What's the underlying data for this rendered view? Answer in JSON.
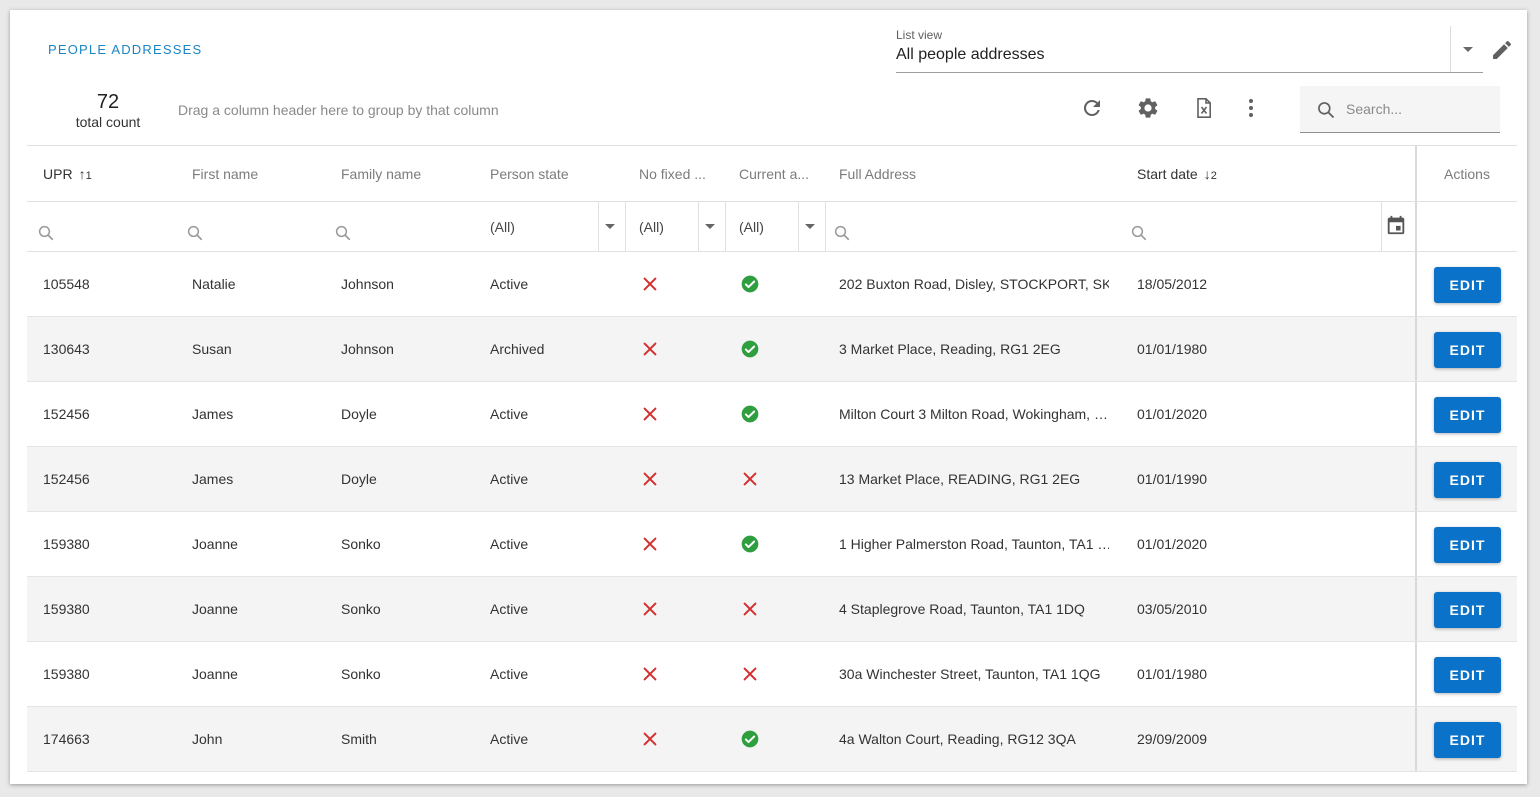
{
  "page": {
    "title": "PEOPLE ADDRESSES"
  },
  "listview": {
    "label": "List view",
    "value": "All people addresses"
  },
  "summary": {
    "count": "72",
    "count_label": "total count",
    "group_hint": "Drag a column header here to group by that column"
  },
  "search": {
    "placeholder": "Search..."
  },
  "columns": {
    "upr": "UPR",
    "upr_sort": "↑",
    "upr_sort_idx": "1",
    "first": "First name",
    "family": "Family name",
    "state": "Person state",
    "nofixed": "No fixed ...",
    "current": "Current a...",
    "address": "Full Address",
    "start": "Start date",
    "start_sort": "↓",
    "start_sort_idx": "2",
    "actions": "Actions"
  },
  "filters": {
    "state": "(All)",
    "nofixed": "(All)",
    "current": "(All)"
  },
  "edit_label": "EDIT",
  "colors": {
    "accent": "#0a73c9",
    "check": "#2e9e3f",
    "cross": "#d32f2f"
  },
  "rows": [
    {
      "upr": "105548",
      "first": "Natalie",
      "family": "Johnson",
      "state": "Active",
      "nofixed": false,
      "current": true,
      "address": "202 Buxton Road, Disley, STOCKPORT, SK…",
      "start": "18/05/2012"
    },
    {
      "upr": "130643",
      "first": "Susan",
      "family": "Johnson",
      "state": "Archived",
      "nofixed": false,
      "current": true,
      "address": "3 Market Place, Reading, RG1 2EG",
      "start": "01/01/1980"
    },
    {
      "upr": "152456",
      "first": "James",
      "family": "Doyle",
      "state": "Active",
      "nofixed": false,
      "current": true,
      "address": "Milton Court 3 Milton Road, Wokingham, …",
      "start": "01/01/2020"
    },
    {
      "upr": "152456",
      "first": "James",
      "family": "Doyle",
      "state": "Active",
      "nofixed": false,
      "current": false,
      "address": "13 Market Place, READING, RG1 2EG",
      "start": "01/01/1990"
    },
    {
      "upr": "159380",
      "first": "Joanne",
      "family": "Sonko",
      "state": "Active",
      "nofixed": false,
      "current": true,
      "address": "1 Higher Palmerston Road, Taunton, TA1 …",
      "start": "01/01/2020"
    },
    {
      "upr": "159380",
      "first": "Joanne",
      "family": "Sonko",
      "state": "Active",
      "nofixed": false,
      "current": false,
      "address": "4 Staplegrove Road, Taunton, TA1 1DQ",
      "start": "03/05/2010"
    },
    {
      "upr": "159380",
      "first": "Joanne",
      "family": "Sonko",
      "state": "Active",
      "nofixed": false,
      "current": false,
      "address": "30a Winchester Street, Taunton, TA1 1QG",
      "start": "01/01/1980"
    },
    {
      "upr": "174663",
      "first": "John",
      "family": "Smith",
      "state": "Active",
      "nofixed": false,
      "current": true,
      "address": "4a Walton Court, Reading, RG12 3QA",
      "start": "29/09/2009"
    }
  ]
}
